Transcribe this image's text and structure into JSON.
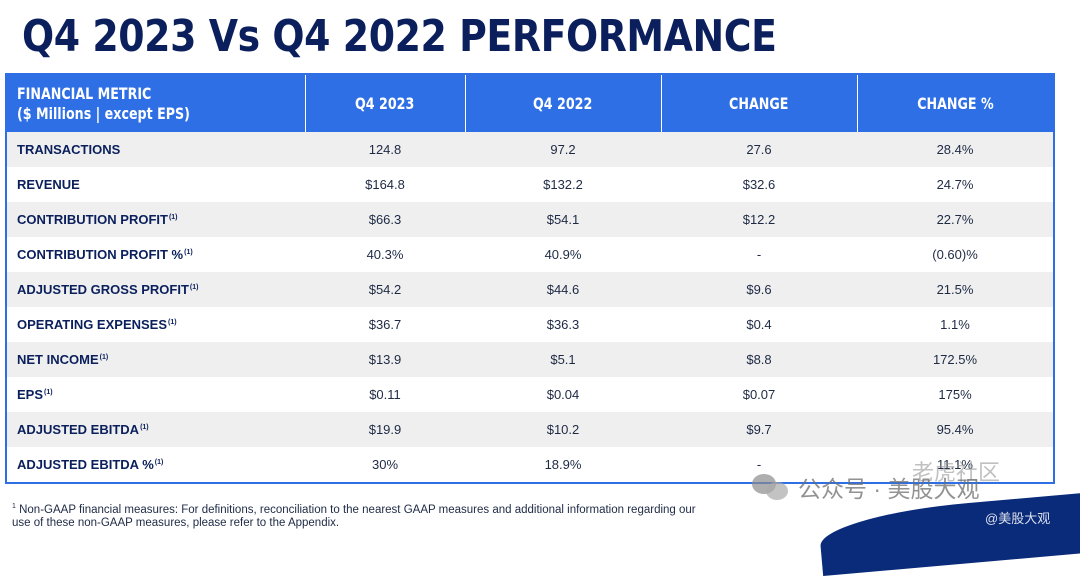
{
  "title": "Q4 2023 Vs Q4 2022 PERFORMANCE",
  "header": {
    "metric_line1": "FINANCIAL METRIC",
    "metric_line2": "($ Millions | except EPS)",
    "q4_2023": "Q4 2023",
    "q4_2022": "Q4 2022",
    "change": "CHANGE",
    "change_pct": "CHANGE %"
  },
  "rows": [
    {
      "metric": "TRANSACTIONS",
      "fn": "",
      "q4_2023": "124.8",
      "q4_2022": "97.2",
      "change": "27.6",
      "change_pct": "28.4%"
    },
    {
      "metric": "REVENUE",
      "fn": "",
      "q4_2023": "$164.8",
      "q4_2022": "$132.2",
      "change": "$32.6",
      "change_pct": "24.7%"
    },
    {
      "metric": "CONTRIBUTION PROFIT",
      "fn": "(1)",
      "q4_2023": "$66.3",
      "q4_2022": "$54.1",
      "change": "$12.2",
      "change_pct": "22.7%"
    },
    {
      "metric": "CONTRIBUTION PROFIT %",
      "fn": "(1)",
      "q4_2023": "40.3%",
      "q4_2022": "40.9%",
      "change": "-",
      "change_pct": "(0.60)%"
    },
    {
      "metric": "ADJUSTED GROSS PROFIT",
      "fn": "(1)",
      "q4_2023": "$54.2",
      "q4_2022": "$44.6",
      "change": "$9.6",
      "change_pct": "21.5%"
    },
    {
      "metric": "OPERATING EXPENSES",
      "fn": "(1)",
      "q4_2023": "$36.7",
      "q4_2022": "$36.3",
      "change": "$0.4",
      "change_pct": "1.1%"
    },
    {
      "metric": "NET INCOME",
      "fn": "(1)",
      "q4_2023": "$13.9",
      "q4_2022": "$5.1",
      "change": "$8.8",
      "change_pct": "172.5%"
    },
    {
      "metric": "EPS",
      "fn": "(1)",
      "q4_2023": "$0.11",
      "q4_2022": "$0.04",
      "change": "$0.07",
      "change_pct": "175%"
    },
    {
      "metric": "ADJUSTED EBITDA",
      "fn": "(1)",
      "q4_2023": "$19.9",
      "q4_2022": "$10.2",
      "change": "$9.7",
      "change_pct": "95.4%"
    },
    {
      "metric": "ADJUSTED EBITDA %",
      "fn": "(1)",
      "q4_2023": "30%",
      "q4_2022": "18.9%",
      "change": "-",
      "change_pct": "11.1%"
    }
  ],
  "footnote": {
    "marker": "1",
    "text": "Non-GAAP financial measures: For definitions, reconciliation to the nearest GAAP measures and additional information regarding our use of these non-GAAP measures, please refer to the Appendix."
  },
  "watermark": {
    "main": "公众号 · 美股大观",
    "top": "老虎社区",
    "sub": "@美股大观"
  },
  "colors": {
    "header_bg": "#2f6fe6",
    "title": "#0a1f5c",
    "row_alt": "#efefef"
  }
}
